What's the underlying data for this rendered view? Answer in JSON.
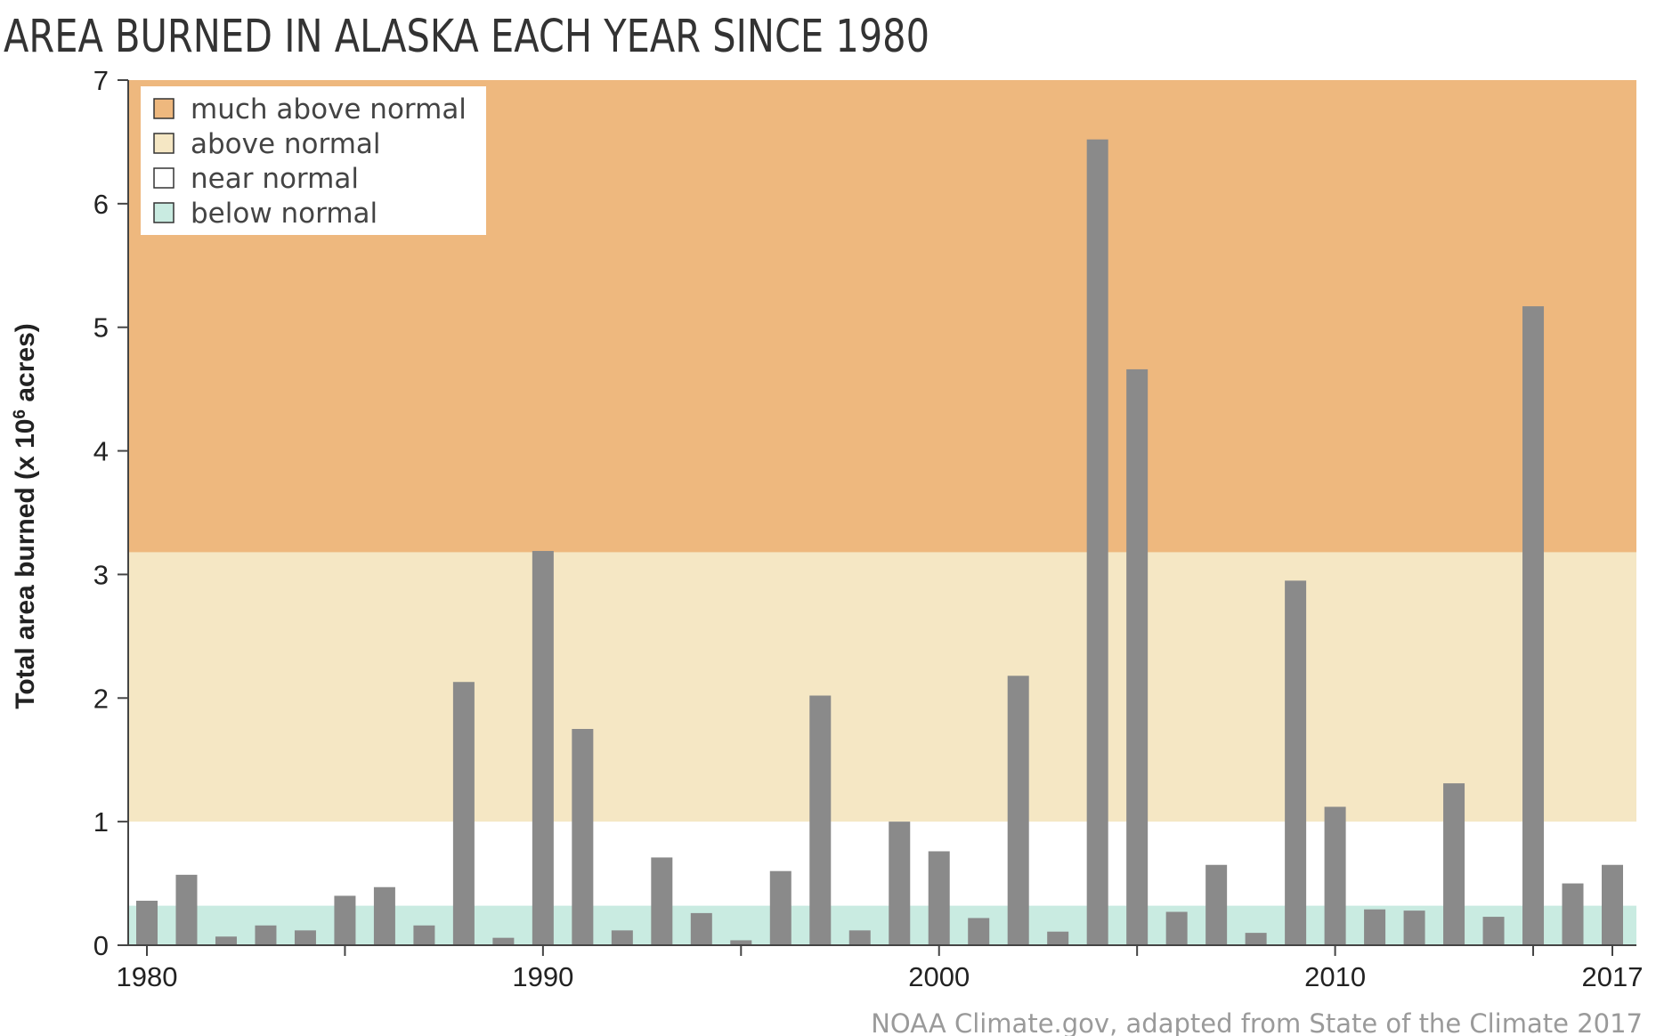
{
  "chart_data": {
    "type": "bar",
    "title": "AREA BURNED IN ALASKA EACH YEAR SINCE 1980",
    "ylabel_main": "Total area burned (x 10",
    "ylabel_sup": "6",
    "ylabel_tail": " acres)",
    "xlabel": "",
    "ylim": [
      0,
      7
    ],
    "xlim": [
      1980,
      2017
    ],
    "yticks": [
      0,
      1,
      2,
      3,
      4,
      5,
      6,
      7
    ],
    "xtick_labels": [
      {
        "year": 1980,
        "label": "1980"
      },
      {
        "year": 1990,
        "label": "1990"
      },
      {
        "year": 2000,
        "label": "2000"
      },
      {
        "year": 2010,
        "label": "2010"
      },
      {
        "year": 2017,
        "label": "2017"
      }
    ],
    "xtick_marks": [
      1980,
      1985,
      1990,
      1995,
      2000,
      2005,
      2010,
      2015,
      2017
    ],
    "years": [
      1980,
      1981,
      1982,
      1983,
      1984,
      1985,
      1986,
      1987,
      1988,
      1989,
      1990,
      1991,
      1992,
      1993,
      1994,
      1995,
      1996,
      1997,
      1998,
      1999,
      2000,
      2001,
      2002,
      2003,
      2004,
      2005,
      2006,
      2007,
      2008,
      2009,
      2010,
      2011,
      2012,
      2013,
      2014,
      2015,
      2016,
      2017
    ],
    "values": [
      0.36,
      0.57,
      0.07,
      0.16,
      0.12,
      0.4,
      0.47,
      0.16,
      2.13,
      0.06,
      3.19,
      1.75,
      0.12,
      0.71,
      0.26,
      0.04,
      0.6,
      2.02,
      0.12,
      1.0,
      0.76,
      0.22,
      2.18,
      0.11,
      6.52,
      4.66,
      0.27,
      0.65,
      0.1,
      2.95,
      1.12,
      0.29,
      0.28,
      1.31,
      0.23,
      5.17,
      0.5,
      0.65
    ],
    "bar_color": "#8a8a8a",
    "bands": [
      {
        "name": "below normal",
        "from": 0,
        "to": 0.32,
        "color": "#c9ebe1"
      },
      {
        "name": "near normal",
        "from": 0.32,
        "to": 1.0,
        "color": "#ffffff"
      },
      {
        "name": "above normal",
        "from": 1.0,
        "to": 3.18,
        "color": "#f5e7c4"
      },
      {
        "name": "much above normal",
        "from": 3.18,
        "to": 7.0,
        "color": "#eeb87e"
      }
    ],
    "legend": {
      "position": "top-left",
      "entries": [
        {
          "label": "much above normal",
          "color": "#eeb87e"
        },
        {
          "label": "above normal",
          "color": "#f5e7c4"
        },
        {
          "label": "near normal",
          "color": "#ffffff"
        },
        {
          "label": "below normal",
          "color": "#c9ebe1"
        }
      ]
    },
    "grid": false
  },
  "credit": "NOAA Climate.gov, adapted from State of the Climate 2017"
}
